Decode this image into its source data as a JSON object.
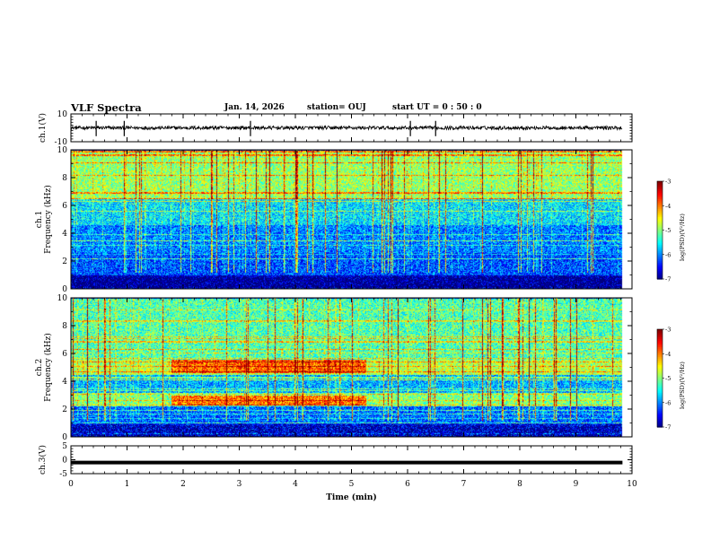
{
  "header": {
    "title": "VLF Spectra",
    "date": "Jan. 14, 2026",
    "station": "station= OUJ",
    "start": "start  UT =   0 : 50 : 0"
  },
  "chart_data": [
    {
      "type": "line",
      "name": "ch1-waveform",
      "ylabel": "ch.1(V)",
      "ylim": [
        -10,
        10
      ],
      "yticks": [
        "10",
        "-10"
      ],
      "xlim": [
        0,
        10
      ],
      "baseline_v": 0,
      "spikes_min": [
        0.45,
        0.95,
        3.2,
        6.05,
        6.5
      ]
    },
    {
      "type": "heatmap",
      "name": "ch1-spectrogram",
      "ylabel": "Frequency (kHz)",
      "ylabel2": "ch.1",
      "ylim": [
        0,
        10
      ],
      "yticks": [
        "0",
        "2",
        "4",
        "6",
        "8",
        "10"
      ],
      "xlim": [
        0,
        10
      ],
      "colorbar": {
        "label": "log(PSD)(V²/Hz)",
        "range": [
          -7,
          -3
        ],
        "ticks": [
          "-3",
          "-4",
          "-5",
          "-6",
          "-7"
        ]
      },
      "bands_khz": [
        {
          "f": [
            0,
            1
          ],
          "level": -6.8
        },
        {
          "f": [
            1,
            2.6
          ],
          "level": -6.2
        },
        {
          "f": [
            2.6,
            4.6
          ],
          "level": -6.0
        },
        {
          "f": [
            4.6,
            6.5
          ],
          "level": -5.6
        },
        {
          "f": [
            6.5,
            10
          ],
          "level": -4.9
        }
      ]
    },
    {
      "type": "heatmap",
      "name": "ch2-spectrogram",
      "ylabel": "Frequency (kHz)",
      "ylabel2": "ch.2",
      "ylim": [
        0,
        10
      ],
      "yticks": [
        "0",
        "2",
        "4",
        "6",
        "8",
        "10"
      ],
      "xlim": [
        0,
        10
      ],
      "colorbar": {
        "label": "log(PSD)(V²/Hz)",
        "range": [
          -7,
          -3
        ],
        "ticks": [
          "-3",
          "-4",
          "-5",
          "-6",
          "-7"
        ]
      },
      "bands_khz": [
        {
          "f": [
            0,
            1
          ],
          "level": -6.5
        },
        {
          "f": [
            1,
            2.2
          ],
          "level": -6.1
        },
        {
          "f": [
            2.2,
            3.2
          ],
          "level": -5.0
        },
        {
          "f": [
            3.2,
            4.5
          ],
          "level": -5.8
        },
        {
          "f": [
            4.5,
            5.6
          ],
          "level": -4.8
        },
        {
          "f": [
            5.6,
            10
          ],
          "level": -5.2
        }
      ],
      "enhanced_interval_min": [
        1.78,
        5.25
      ]
    },
    {
      "type": "line",
      "name": "ch3-waveform",
      "ylabel": "ch.3(V)",
      "ylim": [
        -5,
        5
      ],
      "yticks": [
        "5",
        "0",
        "-5"
      ],
      "xlim": [
        0,
        10
      ],
      "baseline_v": -1.0
    }
  ],
  "xaxis": {
    "label": "Time (min)",
    "ticks": [
      "0",
      "1",
      "2",
      "3",
      "4",
      "5",
      "6",
      "7",
      "8",
      "9",
      "10"
    ]
  }
}
